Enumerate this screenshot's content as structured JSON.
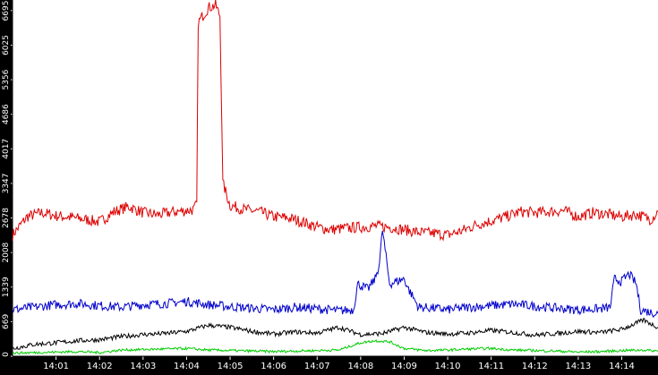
{
  "chart_data": {
    "type": "line",
    "title": "",
    "xlabel": "",
    "ylabel": "",
    "ylim": [
      0,
      6900
    ],
    "xlim": [
      "14:00:00",
      "14:14:50"
    ],
    "grid": false,
    "legend": "none",
    "background_color": "#ffffff",
    "frame_color": "#000000",
    "yticks": [
      0,
      669,
      1339,
      2008,
      2678,
      3347,
      4017,
      4686,
      5356,
      6025,
      6695
    ],
    "ytick_labels": [
      "0",
      "669",
      "1339",
      "2008",
      "2678",
      "3347",
      "4017",
      "4686",
      "5356",
      "6025",
      "6695"
    ],
    "xticks": [
      "14:01",
      "14:02",
      "14:03",
      "14:04",
      "14:05",
      "14:06",
      "14:07",
      "14:08",
      "14:09",
      "14:10",
      "14:11",
      "14:12",
      "14:13",
      "14:14"
    ],
    "xtick_labels": [
      "14:01",
      "14:02",
      "14:03",
      "14:04",
      "14:05",
      "14:06",
      "14:07",
      "14:08",
      "14:09",
      "14:10",
      "14:11",
      "14:12",
      "14:13",
      "14:14"
    ],
    "series": [
      {
        "color": "#dd0000",
        "x": [
          "14:00:00",
          "14:00:20",
          "14:00:40",
          "14:01:00",
          "14:01:20",
          "14:01:40",
          "14:02:00",
          "14:02:20",
          "14:02:40",
          "14:03:00",
          "14:03:20",
          "14:03:40",
          "14:04:00",
          "14:04:10",
          "14:04:14",
          "14:04:16",
          "14:04:20",
          "14:04:30",
          "14:04:40",
          "14:04:46",
          "14:04:50",
          "14:05:00",
          "14:05:20",
          "14:05:40",
          "14:06:00",
          "14:06:20",
          "14:06:40",
          "14:07:00",
          "14:07:20",
          "14:07:40",
          "14:08:00",
          "14:08:20",
          "14:08:40",
          "14:09:00",
          "14:09:20",
          "14:09:40",
          "14:10:00",
          "14:10:20",
          "14:10:40",
          "14:11:00",
          "14:11:20",
          "14:11:40",
          "14:12:00",
          "14:12:20",
          "14:12:40",
          "14:13:00",
          "14:13:20",
          "14:13:40",
          "14:14:00",
          "14:14:20",
          "14:14:40",
          "14:14:50"
        ],
        "values": [
          2350,
          2700,
          2780,
          2720,
          2690,
          2650,
          2600,
          2800,
          2900,
          2780,
          2740,
          2790,
          2820,
          2840,
          2950,
          6450,
          6550,
          6750,
          6800,
          6600,
          3350,
          2920,
          2840,
          2800,
          2700,
          2680,
          2600,
          2500,
          2450,
          2480,
          2500,
          2520,
          2500,
          2450,
          2400,
          2380,
          2350,
          2430,
          2550,
          2620,
          2700,
          2800,
          2780,
          2800,
          2820,
          2700,
          2780,
          2750,
          2700,
          2750,
          2650,
          2800
        ]
      },
      {
        "color": "#0000cc",
        "x": [
          "14:00:00",
          "14:00:30",
          "14:01:00",
          "14:01:30",
          "14:02:00",
          "14:02:30",
          "14:03:00",
          "14:03:30",
          "14:04:00",
          "14:04:30",
          "14:05:00",
          "14:05:30",
          "14:06:00",
          "14:06:30",
          "14:07:00",
          "14:07:30",
          "14:07:50",
          "14:07:56",
          "14:08:10",
          "14:08:20",
          "14:08:26",
          "14:08:30",
          "14:08:40",
          "14:09:00",
          "14:09:06",
          "14:09:20",
          "14:09:40",
          "14:10:00",
          "14:10:30",
          "14:11:00",
          "14:11:30",
          "14:12:00",
          "14:12:30",
          "14:13:00",
          "14:13:30",
          "14:13:44",
          "14:13:50",
          "14:14:00",
          "14:14:10",
          "14:14:20",
          "14:14:26",
          "14:14:40",
          "14:14:50"
        ],
        "values": [
          900,
          950,
          1000,
          1020,
          980,
          950,
          1000,
          1020,
          1060,
          1000,
          960,
          930,
          900,
          950,
          920,
          880,
          900,
          1400,
          1300,
          1500,
          1800,
          2450,
          1400,
          1500,
          1300,
          950,
          930,
          900,
          950,
          980,
          1010,
          970,
          930,
          900,
          920,
          940,
          1500,
          1450,
          1600,
          1400,
          900,
          850,
          830
        ]
      },
      {
        "color": "#000000",
        "x": [
          "14:00:00",
          "14:00:30",
          "14:01:00",
          "14:01:30",
          "14:02:00",
          "14:02:30",
          "14:03:00",
          "14:03:30",
          "14:04:00",
          "14:04:30",
          "14:05:00",
          "14:05:30",
          "14:06:00",
          "14:06:30",
          "14:07:00",
          "14:07:30",
          "14:08:00",
          "14:08:30",
          "14:09:00",
          "14:09:30",
          "14:10:00",
          "14:10:30",
          "14:11:00",
          "14:11:30",
          "14:12:00",
          "14:12:30",
          "14:13:00",
          "14:13:30",
          "14:14:00",
          "14:14:30",
          "14:14:50"
        ],
        "values": [
          150,
          230,
          260,
          300,
          320,
          380,
          420,
          440,
          480,
          600,
          560,
          480,
          430,
          470,
          450,
          560,
          420,
          440,
          560,
          460,
          430,
          450,
          500,
          460,
          410,
          440,
          480,
          460,
          520,
          700,
          560
        ]
      },
      {
        "color": "#00cc00",
        "x": [
          "14:00:00",
          "14:00:30",
          "14:01:00",
          "14:01:30",
          "14:02:00",
          "14:02:30",
          "14:03:00",
          "14:03:30",
          "14:04:00",
          "14:04:30",
          "14:05:00",
          "14:05:30",
          "14:06:00",
          "14:06:30",
          "14:07:00",
          "14:07:30",
          "14:08:00",
          "14:08:20",
          "14:08:40",
          "14:09:00",
          "14:09:30",
          "14:10:00",
          "14:10:30",
          "14:11:00",
          "14:11:30",
          "14:12:00",
          "14:12:30",
          "14:13:00",
          "14:13:30",
          "14:14:00",
          "14:14:30",
          "14:14:50"
        ],
        "values": [
          60,
          70,
          80,
          90,
          70,
          120,
          130,
          140,
          150,
          120,
          110,
          100,
          90,
          100,
          110,
          120,
          260,
          300,
          280,
          150,
          110,
          120,
          140,
          150,
          120,
          110,
          100,
          80,
          90,
          110,
          120,
          100
        ]
      }
    ]
  }
}
